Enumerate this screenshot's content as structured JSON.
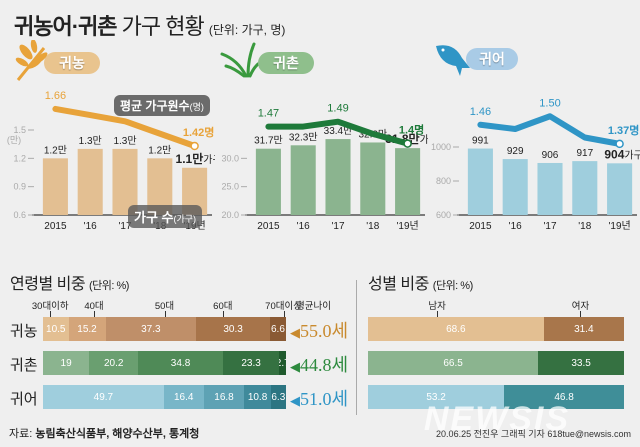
{
  "header": {
    "title_bold": "귀농어·귀촌",
    "title_light": "가구 현황",
    "unit": "(단위: 가구, 명)"
  },
  "footer": {
    "source_label": "자료:",
    "source": "농림축산식품부, 해양수산부, 통계청",
    "credit": "20.06.25 전진우 그래픽 기자 618tue@newsis.com",
    "watermark": "NEWSIS"
  },
  "colors": {
    "farm": "#e8a33a",
    "farm_bar": "#e3bf92",
    "rural": "#1e7a3a",
    "rural_bar": "#8bb48f",
    "fish": "#2f95c6",
    "fish_bar": "#9fcedd"
  },
  "chart_data": [
    {
      "type": "bar",
      "name": "귀농",
      "categories": [
        "2015",
        "'16",
        "'17",
        "'18",
        "'19년"
      ],
      "series": [
        {
          "name": "가구 수(가구)",
          "values": [
            1.2,
            1.3,
            1.3,
            1.2,
            1.1
          ],
          "labels": [
            "1.2만",
            "1.3만",
            "1.3만",
            "1.2만",
            "1.1만"
          ],
          "last_suffix": "가구"
        },
        {
          "name": "평균 가구원수(명)",
          "type": "line",
          "values": [
            1.66,
            1.62,
            1.58,
            1.5,
            1.42
          ],
          "labels": [
            "1.66",
            "",
            "",
            "",
            "1.42명"
          ]
        }
      ],
      "yticks": [
        "0.6",
        "0.9",
        "1.2",
        "1.5"
      ],
      "yunit": "(만)",
      "ylim": [
        0.6,
        1.5
      ],
      "callouts": {
        "line": "평균 가구원수",
        "line_unit": "(명)",
        "bar": "가구 수",
        "bar_unit": "(가구)"
      }
    },
    {
      "type": "bar",
      "name": "귀촌",
      "categories": [
        "2015",
        "'16",
        "'17",
        "'18",
        "'19년"
      ],
      "series": [
        {
          "name": "가구 수",
          "values": [
            31.7,
            32.3,
            33.4,
            32.8,
            31.8
          ],
          "labels": [
            "31.7만",
            "32.3만",
            "33.4만",
            "32.8만",
            "31.8만"
          ],
          "last_suffix": "가구"
        },
        {
          "name": "평균 가구원수",
          "type": "line",
          "values": [
            1.47,
            1.47,
            1.49,
            1.44,
            1.4
          ],
          "labels": [
            "1.47",
            "",
            "1.49",
            "",
            "1.4명"
          ]
        }
      ],
      "yticks": [
        "20.0",
        "25.0",
        "30.0"
      ],
      "ylim": [
        20,
        35
      ]
    },
    {
      "type": "bar",
      "name": "귀어",
      "categories": [
        "2015",
        "'16",
        "'17",
        "'18",
        "'19년"
      ],
      "series": [
        {
          "name": "가구 수",
          "values": [
            991,
            929,
            906,
            917,
            904
          ],
          "labels": [
            "991",
            "929",
            "906",
            "917",
            "904"
          ],
          "last_suffix": "가구"
        },
        {
          "name": "평균 가구원수",
          "type": "line",
          "values": [
            1.46,
            1.44,
            1.5,
            1.4,
            1.37
          ],
          "labels": [
            "1.46",
            "",
            "1.50",
            "",
            "1.37명"
          ]
        }
      ],
      "yticks": [
        "600",
        "800",
        "1000"
      ],
      "ylim": [
        600,
        1100
      ]
    },
    {
      "type": "bar",
      "name": "연령별 비중",
      "unit": "(단위: %)",
      "stacked": true,
      "orientation": "horizontal",
      "categories": [
        "30대이하",
        "40대",
        "50대",
        "60대",
        "70대이상"
      ],
      "avg_header": "평균나이",
      "rows": [
        {
          "label": "귀농",
          "values": [
            10.5,
            15.2,
            37.3,
            30.3,
            6.6
          ],
          "labels": [
            "10.5",
            "15.2",
            "37.3",
            "30.3",
            "6.6"
          ],
          "avg": "55.0세",
          "colors": [
            "#e3bf92",
            "#d4a57a",
            "#bf8f69",
            "#a7744a",
            "#8a5a34"
          ],
          "avg_color": "#c98a2e"
        },
        {
          "label": "귀촌",
          "values": [
            19,
            20.2,
            34.8,
            23.3,
            2.7
          ],
          "labels": [
            "19",
            "20.2",
            "34.8",
            "23.3",
            "2.7"
          ],
          "avg": "44.8세",
          "colors": [
            "#8bb48f",
            "#6a9f70",
            "#4f8a57",
            "#357141",
            "#1f5a2d"
          ],
          "avg_color": "#2d8a3e"
        },
        {
          "label": "귀어",
          "values": [
            49.7,
            16.4,
            16.8,
            10.8,
            6.3
          ],
          "labels": [
            "49.7",
            "16.4",
            "16.8",
            "10.8",
            "6.3"
          ],
          "avg": "51.0세",
          "colors": [
            "#9fcedd",
            "#78b6c8",
            "#5ea2b4",
            "#3f8a9b",
            "#2c7582"
          ],
          "avg_color": "#2f95c6"
        }
      ]
    },
    {
      "type": "bar",
      "name": "성별 비중",
      "unit": "(단위: %)",
      "stacked": true,
      "orientation": "horizontal",
      "categories": [
        "남자",
        "여자"
      ],
      "rows": [
        {
          "label": "귀농",
          "values": [
            68.6,
            31.4
          ],
          "labels": [
            "68.6",
            "31.4"
          ],
          "colors": [
            "#e3bf92",
            "#a8764b"
          ]
        },
        {
          "label": "귀촌",
          "values": [
            66.5,
            33.5
          ],
          "labels": [
            "66.5",
            "33.5"
          ],
          "colors": [
            "#8bb48f",
            "#357141"
          ]
        },
        {
          "label": "귀어",
          "values": [
            53.2,
            46.8
          ],
          "labels": [
            "53.2",
            "46.8"
          ],
          "colors": [
            "#9fcedd",
            "#3f8e98"
          ]
        }
      ]
    }
  ]
}
